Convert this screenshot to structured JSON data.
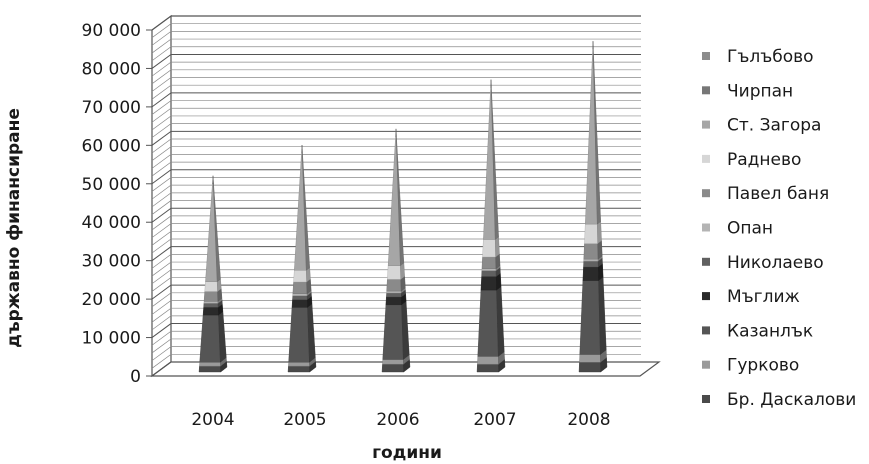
{
  "chart_data": {
    "type": "bar",
    "subtype": "stacked-3d-pyramid",
    "xlabel": "години",
    "ylabel": "държавно финансиране",
    "ylim": [
      0,
      90000
    ],
    "yticks": [
      "0",
      "10 000",
      "20 000",
      "30 000",
      "40 000",
      "50 000",
      "60 000",
      "70 000",
      "80 000",
      "90 000"
    ],
    "categories": [
      "2004",
      "2005",
      "2006",
      "2007",
      "2008"
    ],
    "grid": true,
    "legend_position": "right",
    "series": [
      {
        "name": "Бр. Даскалови",
        "color": "#4a4a4a",
        "values": [
          1500,
          1500,
          2000,
          2000,
          2500
        ]
      },
      {
        "name": "Гурково",
        "color": "#9a9a9a",
        "values": [
          1000,
          1000,
          1200,
          2000,
          2000
        ]
      },
      {
        "name": "Казанлък",
        "color": "#555555",
        "values": [
          12000,
          14000,
          14000,
          17000,
          19000
        ]
      },
      {
        "name": "Мъглиж",
        "color": "#2a2a2a",
        "values": [
          2000,
          2000,
          2000,
          3500,
          3500
        ]
      },
      {
        "name": "Николаево",
        "color": "#606060",
        "values": [
          1000,
          1000,
          1000,
          1500,
          1500
        ]
      },
      {
        "name": "Опан",
        "color": "#b4b4b4",
        "values": [
          500,
          500,
          500,
          500,
          500
        ]
      },
      {
        "name": "Павел баня",
        "color": "#8a8a8a",
        "values": [
          2500,
          3000,
          3000,
          3000,
          4000
        ]
      },
      {
        "name": "Раднево",
        "color": "#d6d6d6",
        "values": [
          2500,
          3000,
          3500,
          4500,
          5000
        ]
      },
      {
        "name": "Ст. Загора",
        "color": "#a6a6a6",
        "values": [
          25000,
          30000,
          33000,
          39000,
          45000
        ]
      },
      {
        "name": "Чирпан",
        "color": "#777777",
        "values": [
          1000,
          1000,
          1000,
          1000,
          1000
        ]
      },
      {
        "name": "Гълъбово",
        "color": "#8c8c8c",
        "values": [
          1000,
          1000,
          1000,
          1000,
          1000
        ]
      }
    ]
  }
}
